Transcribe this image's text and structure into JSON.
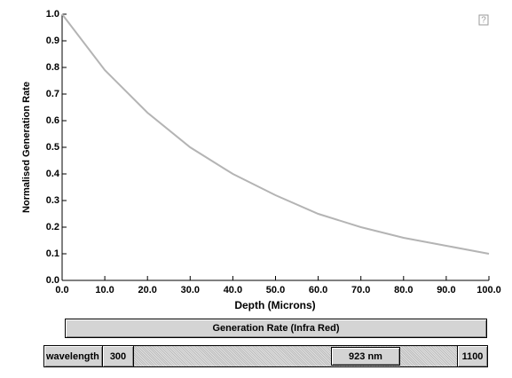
{
  "chart_data": {
    "type": "line",
    "x_label": "Depth (Microns)",
    "y_label": "Normalised Generation Rate",
    "x": [
      0,
      10,
      20,
      30,
      40,
      50,
      60,
      70,
      80,
      90,
      100
    ],
    "values": [
      1.0,
      0.79,
      0.63,
      0.5,
      0.4,
      0.32,
      0.25,
      0.2,
      0.16,
      0.13,
      0.1
    ],
    "color": "#b4b4b4",
    "xlim": [
      0,
      100
    ],
    "xticks": [
      {
        "value": 0,
        "label": "0.0"
      },
      {
        "value": 10,
        "label": "10.0"
      },
      {
        "value": 20,
        "label": "20.0"
      },
      {
        "value": 30,
        "label": "30.0"
      },
      {
        "value": 40,
        "label": "40.0"
      },
      {
        "value": 50,
        "label": "50.0"
      },
      {
        "value": 60,
        "label": "60.0"
      },
      {
        "value": 70,
        "label": "70.0"
      },
      {
        "value": 80,
        "label": "80.0"
      },
      {
        "value": 90,
        "label": "90.0"
      },
      {
        "value": 100,
        "label": "100.0"
      }
    ],
    "ylim": [
      0,
      1
    ],
    "yticks": [
      {
        "value": 0,
        "label": "0.0"
      },
      0.1,
      0.2,
      0.3,
      0.4,
      0.5,
      0.6,
      0.7,
      0.8,
      0.9,
      {
        "value": 1,
        "label": "1.0"
      }
    ],
    "grid": false
  },
  "help": "?",
  "controls": {
    "mode_button": "Generation Rate (Infra Red)",
    "slider_label": "wavelength",
    "slider_min": "300",
    "slider_value": "923 nm",
    "slider_max": "1100"
  }
}
